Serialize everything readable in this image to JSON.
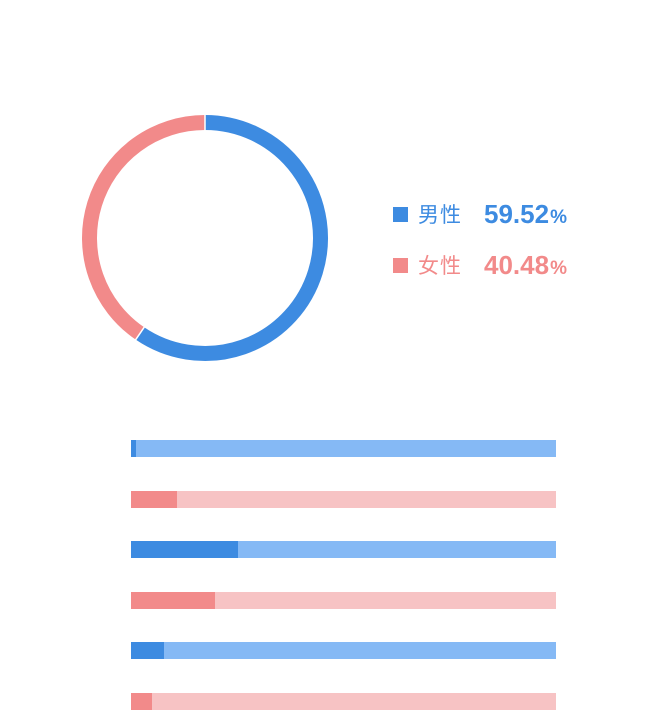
{
  "colors": {
    "male": "#3d8be1",
    "male_light": "#85b9f5",
    "female": "#f28a8a",
    "female_light": "#f7c3c4"
  },
  "legend": {
    "male": {
      "label": "男性",
      "value": "59.52",
      "unit": "%"
    },
    "female": {
      "label": "女性",
      "value": "40.48",
      "unit": "%"
    }
  },
  "chart_data": [
    {
      "type": "pie",
      "variant": "donut",
      "categories": [
        "男性",
        "女性"
      ],
      "values": [
        59.52,
        40.48
      ],
      "colors": [
        "#3d8be1",
        "#f28a8a"
      ],
      "legend_position": "right"
    },
    {
      "type": "bar",
      "orientation": "horizontal",
      "value_range": [
        0,
        1
      ],
      "series": [
        {
          "values": [
            0.012,
            0.108
          ],
          "fill_colors": [
            "#3d8be1",
            "#f28a8a"
          ],
          "track_colors": [
            "#85b9f5",
            "#f7c3c4"
          ]
        }
      ],
      "bars": [
        {
          "group": "male",
          "fraction": 0.012
        },
        {
          "group": "female",
          "fraction": 0.108
        },
        {
          "group": "male",
          "fraction": 0.252
        },
        {
          "group": "female",
          "fraction": 0.198
        },
        {
          "group": "male",
          "fraction": 0.078
        },
        {
          "group": "female",
          "fraction": 0.05
        }
      ]
    }
  ]
}
